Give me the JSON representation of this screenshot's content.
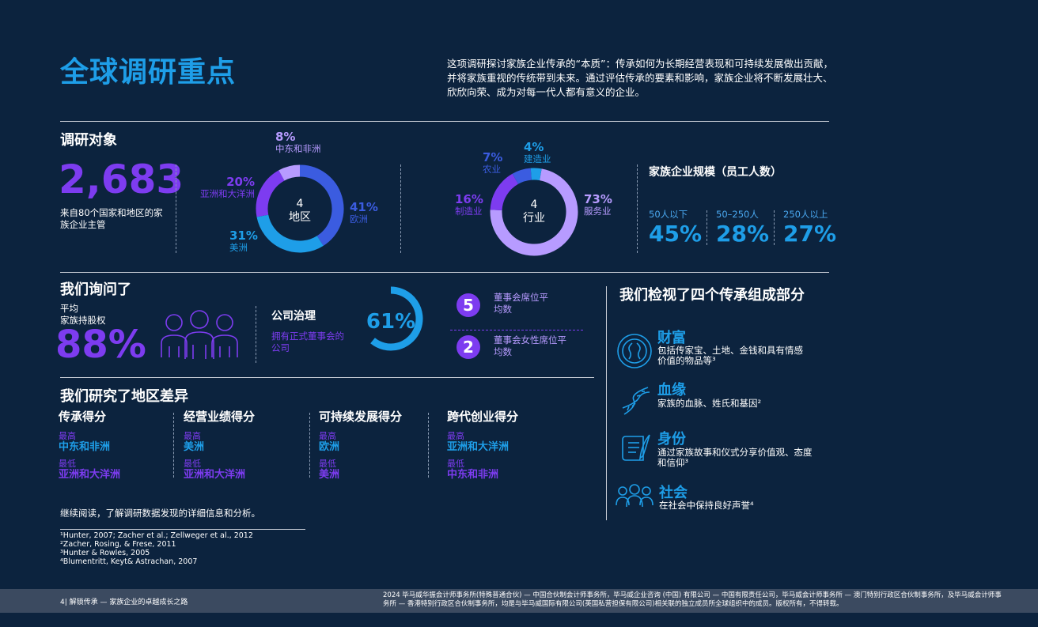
{
  "title": "全球调研重点",
  "intro": "这项调研探讨家族企业传承的“本质”：传承如何为长期经营表现和可持续发展做出贡献，并将家族重视的传统带到未来。通过评估传承的要素和影响，家族企业将不断发展壮大、欣欣向荣、成为对每一代人都有意义的企业。",
  "subjects": {
    "heading": "调研对象",
    "count": "2,683",
    "count_desc": "来自80个国家和地区的家族企业主管"
  },
  "region_donut": {
    "center_num": "4",
    "center_label": "地区",
    "segments": [
      {
        "pct": "41%",
        "name": "欧洲",
        "value": 41,
        "color": "#3b5ce0"
      },
      {
        "pct": "31%",
        "name": "美洲",
        "value": 31,
        "color": "#1e9ee8"
      },
      {
        "pct": "20%",
        "name": "亚洲和大洋洲",
        "value": 20,
        "color": "#7d3cf0"
      },
      {
        "pct": "8%",
        "name": "中东和非洲",
        "value": 8,
        "color": "#b79bff"
      }
    ]
  },
  "industry_donut": {
    "center_num": "4",
    "center_label": "行业",
    "segments": [
      {
        "pct": "73%",
        "name": "服务业",
        "value": 73,
        "color": "#b79bff"
      },
      {
        "pct": "16%",
        "name": "制造业",
        "value": 16,
        "color": "#7d3cf0"
      },
      {
        "pct": "7%",
        "name": "农业",
        "value": 7,
        "color": "#3b5ce0"
      },
      {
        "pct": "4%",
        "name": "建造业",
        "value": 4,
        "color": "#1e9ee8"
      }
    ]
  },
  "size": {
    "heading": "家族企业规模（员工人数）",
    "items": [
      {
        "label": "50人以下",
        "value": "45%"
      },
      {
        "label": "50–250人",
        "value": "28%"
      },
      {
        "label": "250人以上",
        "value": "27%"
      }
    ]
  },
  "asked": {
    "heading": "我们询问了",
    "ownership_label_1": "平均",
    "ownership_label_2": "家族持股权",
    "ownership_value": "88%",
    "governance_heading": "公司治理",
    "governance_desc": "拥有正式董事会的公司",
    "governance_value": "61%",
    "governance_fraction": 0.61,
    "board_seats_num": "5",
    "board_seats_label": "董事会席位平均数",
    "female_seats_num": "2",
    "female_seats_label": "董事会女性席位平均数"
  },
  "regions": {
    "heading": "我们研究了地区差异",
    "highest_label": "最高",
    "lowest_label": "最低",
    "columns": [
      {
        "title": "传承得分",
        "highest": "中东和非洲",
        "lowest": "亚洲和大洋洲"
      },
      {
        "title": "经营业绩得分",
        "highest": "美洲",
        "lowest": "亚洲和大洋洲"
      },
      {
        "title": "可持续发展得分",
        "highest": "欧洲",
        "lowest": "美洲"
      },
      {
        "title": "跨代创业得分",
        "highest": "亚洲和大洋洲",
        "lowest": "中东和非洲"
      }
    ],
    "read_more": "继续阅读，了解调研数据发现的详细信息和分析。"
  },
  "components": {
    "heading": "我们检视了四个传承组成部分",
    "items": [
      {
        "title": "财富",
        "desc_1": "包括传家宝、土地、金钱和具有情感",
        "desc_2": "价值的物品等³",
        "icon": "wealth-icon"
      },
      {
        "title": "血缘",
        "desc_1": "家族的血脉、姓氏和基因²",
        "desc_2": "",
        "icon": "dna-icon"
      },
      {
        "title": "身份",
        "desc_1": "通过家族故事和仪式分享价值观、态度",
        "desc_2": "和信仰³",
        "icon": "scroll-icon"
      },
      {
        "title": "社会",
        "desc_1": "在社会中保持良好声誉⁴",
        "desc_2": "",
        "icon": "community-icon"
      }
    ]
  },
  "footnotes": [
    "¹Hunter, 2007; Zacher et al.; Zellweger et al., 2012",
    "²Zacher, Rosing, & Frese, 2011",
    "³Hunter & Rowles, 2005",
    "⁴Blumentritt, Keyt& Astrachan, 2007"
  ],
  "footer": {
    "left": "4| 解锁传承 — 家族企业的卓越成长之路",
    "right": "2024 毕马威华振会计师事务所(特殊普通合伙) — 中国合伙制会计师事务所，毕马威企业咨询 (中国) 有限公司 — 中国有限责任公司，毕马威会计师事务所 — 澳门特别行政区合伙制事务所，及毕马威会计师事务所 — 香港特别行政区合伙制事务所，均是与毕马威国际有限公司(英国私营担保有限公司)相关联的独立成员所全球组织中的成员。版权所有，不得转载。"
  }
}
